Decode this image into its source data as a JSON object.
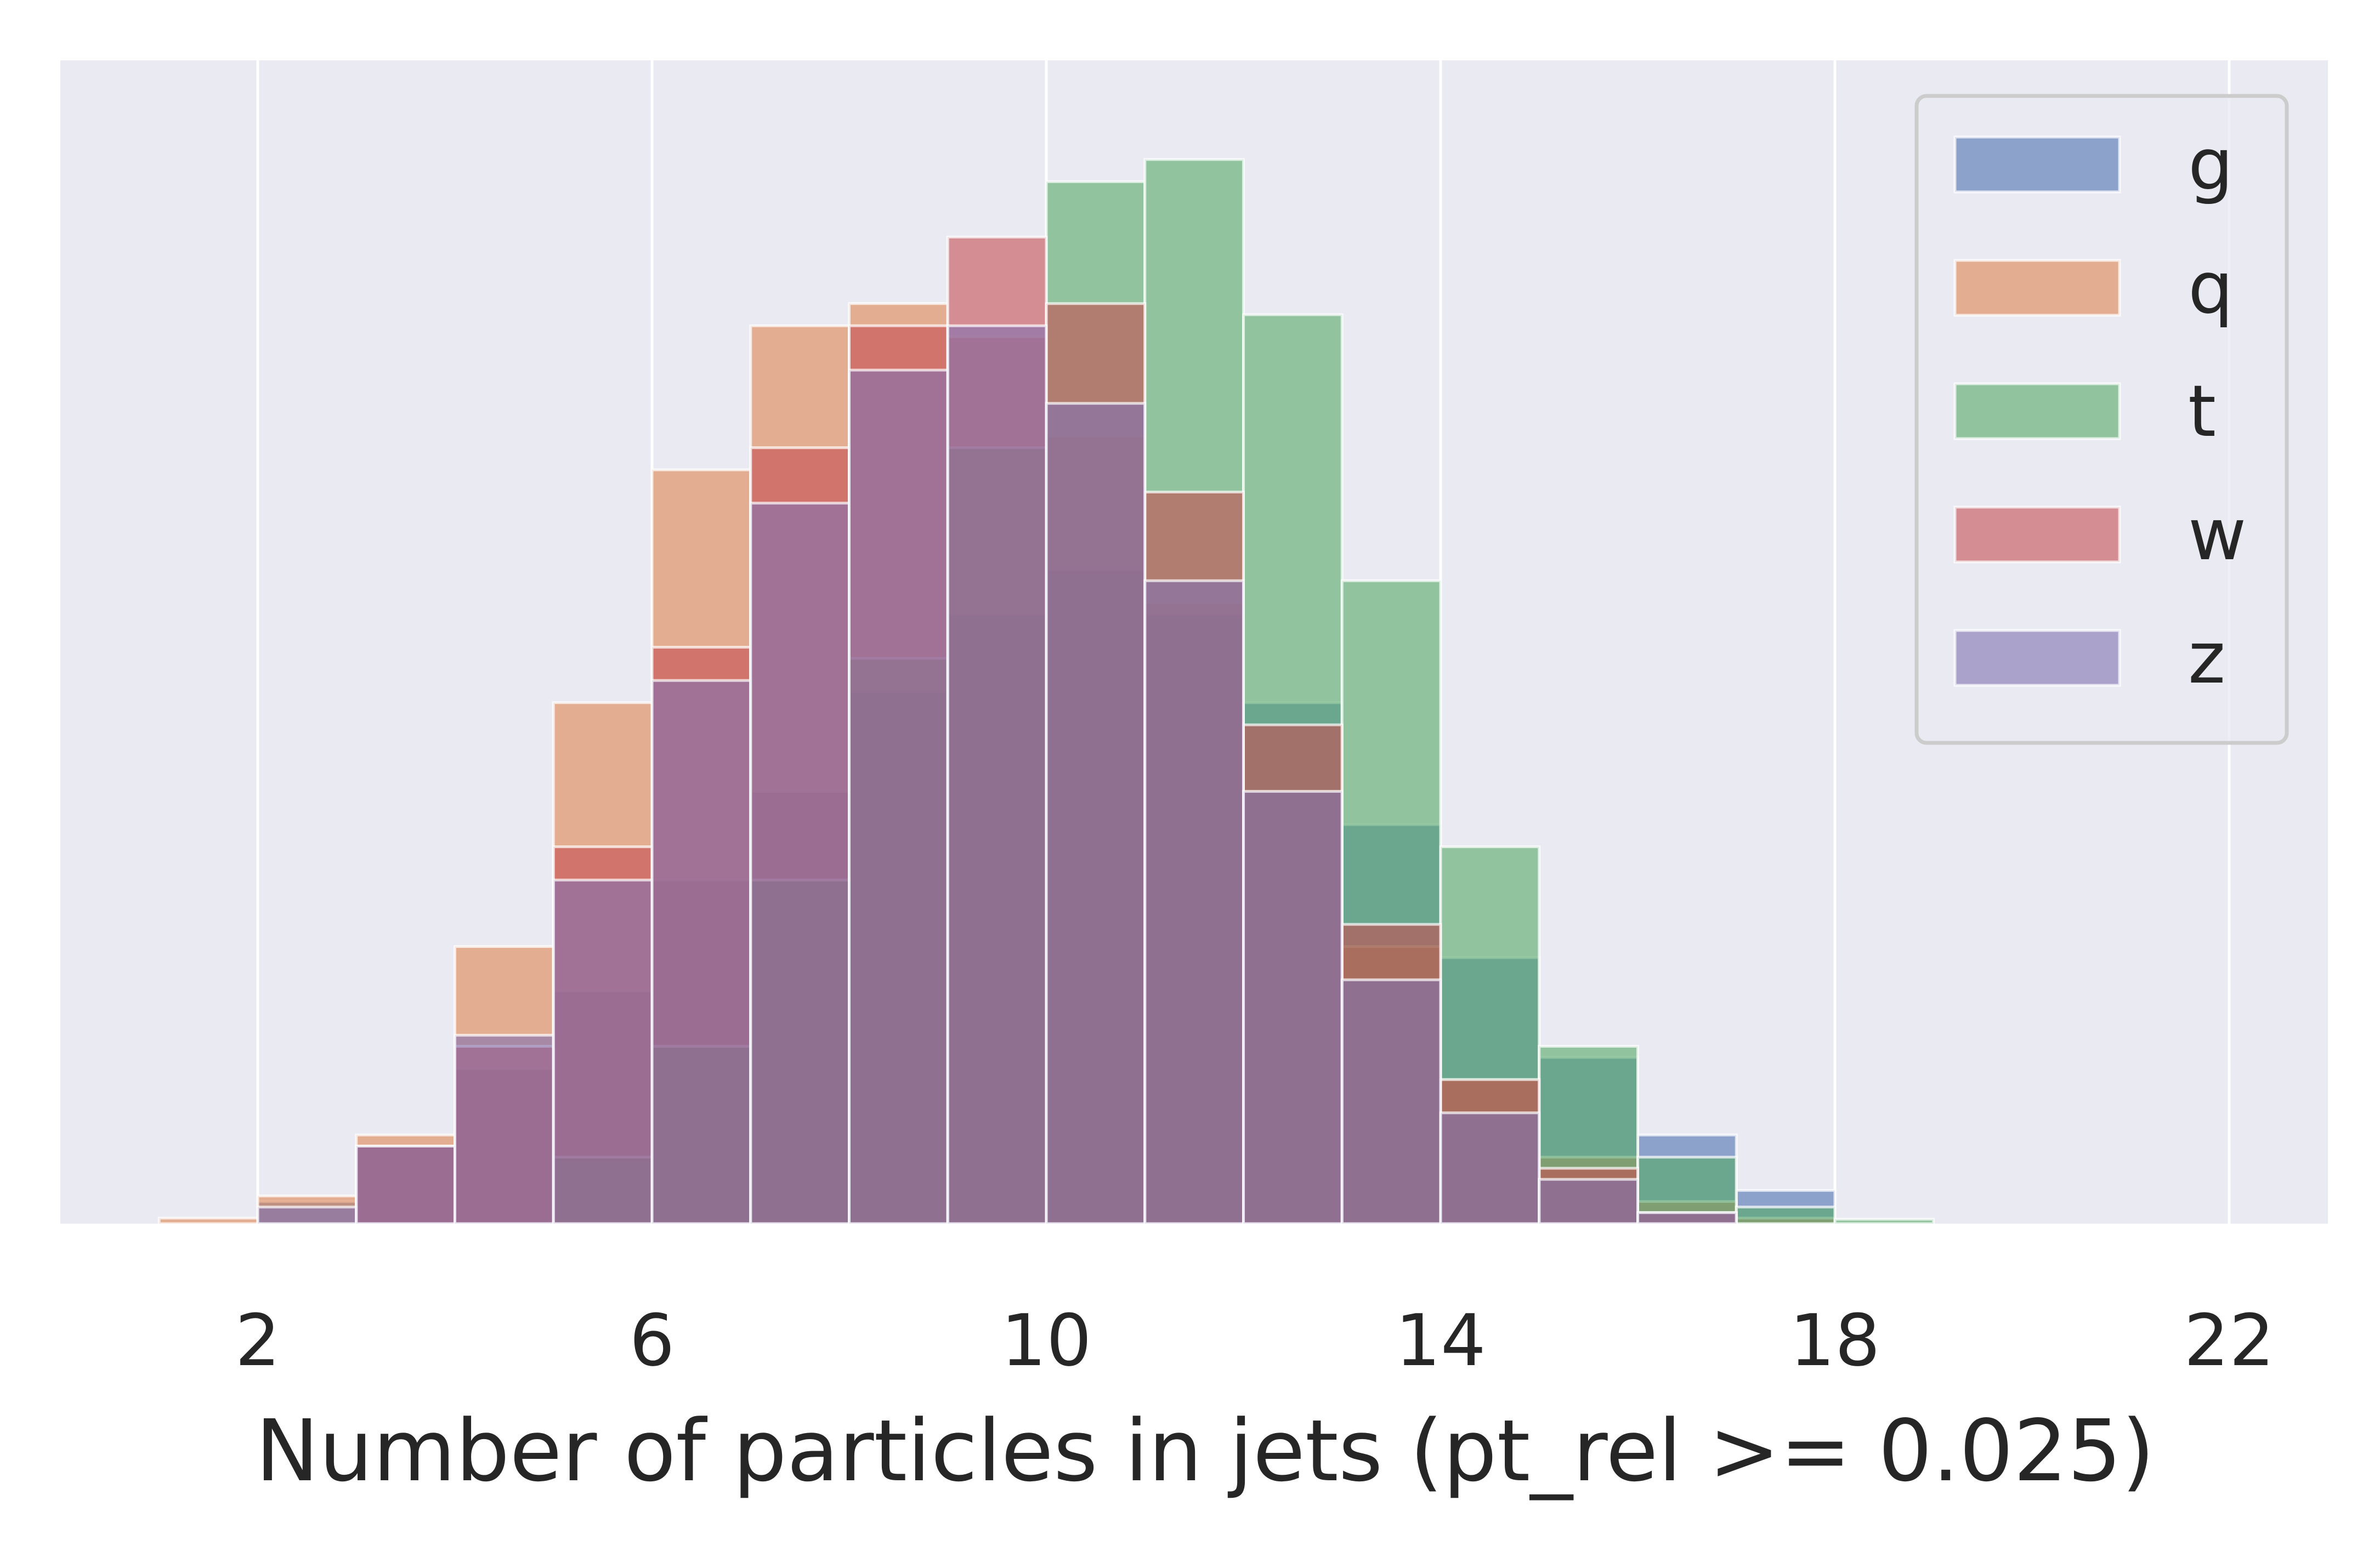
{
  "chart_data": {
    "type": "bar",
    "subtype": "overlaid-histogram",
    "title": "",
    "xlabel": "Number of particles in jets (pt_rel >= 0.025)",
    "ylabel": "",
    "xlim": [
      -2,
      23
    ],
    "ylim": [
      0,
      1.0
    ],
    "y_tick_labels_shown": false,
    "xticks": [
      2,
      6,
      10,
      14,
      18,
      22
    ],
    "grid": "vertical",
    "legend_placement": "top-right",
    "bar_opacity": 0.6,
    "series": [
      {
        "name": "g",
        "color": "#4c72b0",
        "bins": [
          {
            "x0": 2.0,
            "x1": 3.0,
            "value": 0.02
          },
          {
            "x0": 3.0,
            "x1": 4.0,
            "value": 0.07
          },
          {
            "x0": 4.0,
            "x1": 5.0,
            "value": 0.14
          },
          {
            "x0": 5.0,
            "x1": 6.0,
            "value": 0.21
          },
          {
            "x0": 6.0,
            "x1": 7.0,
            "value": 0.31
          },
          {
            "x0": 7.0,
            "x1": 8.0,
            "value": 0.39
          },
          {
            "x0": 8.0,
            "x1": 9.0,
            "value": 0.48
          },
          {
            "x0": 9.0,
            "x1": 10.0,
            "value": 0.55
          },
          {
            "x0": 10.0,
            "x1": 11.0,
            "value": 0.59
          },
          {
            "x0": 11.0,
            "x1": 12.0,
            "value": 0.55
          },
          {
            "x0": 12.0,
            "x1": 13.0,
            "value": 0.47
          },
          {
            "x0": 13.0,
            "x1": 14.0,
            "value": 0.36
          },
          {
            "x0": 14.0,
            "x1": 15.0,
            "value": 0.24
          },
          {
            "x0": 15.0,
            "x1": 16.0,
            "value": 0.15
          },
          {
            "x0": 16.0,
            "x1": 17.0,
            "value": 0.08
          },
          {
            "x0": 17.0,
            "x1": 18.0,
            "value": 0.03
          }
        ]
      },
      {
        "name": "q",
        "color": "#dd8452",
        "bins": [
          {
            "x0": 1.0,
            "x1": 2.0,
            "value": 0.005
          },
          {
            "x0": 2.0,
            "x1": 3.0,
            "value": 0.025
          },
          {
            "x0": 3.0,
            "x1": 4.0,
            "value": 0.08
          },
          {
            "x0": 4.0,
            "x1": 5.0,
            "value": 0.25
          },
          {
            "x0": 5.0,
            "x1": 6.0,
            "value": 0.47
          },
          {
            "x0": 6.0,
            "x1": 7.0,
            "value": 0.68
          },
          {
            "x0": 7.0,
            "x1": 8.0,
            "value": 0.81
          },
          {
            "x0": 8.0,
            "x1": 9.0,
            "value": 0.83
          },
          {
            "x0": 9.0,
            "x1": 10.0,
            "value": 0.8
          },
          {
            "x0": 10.0,
            "x1": 11.0,
            "value": 0.71
          },
          {
            "x0": 11.0,
            "x1": 12.0,
            "value": 0.56
          },
          {
            "x0": 12.0,
            "x1": 13.0,
            "value": 0.39
          },
          {
            "x0": 13.0,
            "x1": 14.0,
            "value": 0.25
          },
          {
            "x0": 14.0,
            "x1": 15.0,
            "value": 0.13
          },
          {
            "x0": 15.0,
            "x1": 16.0,
            "value": 0.06
          },
          {
            "x0": 16.0,
            "x1": 17.0,
            "value": 0.02
          },
          {
            "x0": 17.0,
            "x1": 18.0,
            "value": 0.005
          }
        ]
      },
      {
        "name": "t",
        "color": "#55a868",
        "bins": [
          {
            "x0": 5.0,
            "x1": 6.0,
            "value": 0.06
          },
          {
            "x0": 6.0,
            "x1": 7.0,
            "value": 0.16
          },
          {
            "x0": 7.0,
            "x1": 8.0,
            "value": 0.31
          },
          {
            "x0": 8.0,
            "x1": 9.0,
            "value": 0.51
          },
          {
            "x0": 9.0,
            "x1": 10.0,
            "value": 0.7
          },
          {
            "x0": 10.0,
            "x1": 11.0,
            "value": 0.94
          },
          {
            "x0": 11.0,
            "x1": 12.0,
            "value": 0.96
          },
          {
            "x0": 12.0,
            "x1": 13.0,
            "value": 0.82
          },
          {
            "x0": 13.0,
            "x1": 14.0,
            "value": 0.58
          },
          {
            "x0": 14.0,
            "x1": 15.0,
            "value": 0.34
          },
          {
            "x0": 15.0,
            "x1": 16.0,
            "value": 0.16
          },
          {
            "x0": 16.0,
            "x1": 17.0,
            "value": 0.06
          },
          {
            "x0": 17.0,
            "x1": 18.0,
            "value": 0.015
          },
          {
            "x0": 18.0,
            "x1": 19.0,
            "value": 0.004
          }
        ]
      },
      {
        "name": "w",
        "color": "#c44e52",
        "bins": [
          {
            "x0": 3.0,
            "x1": 4.0,
            "value": 0.07
          },
          {
            "x0": 4.0,
            "x1": 5.0,
            "value": 0.16
          },
          {
            "x0": 5.0,
            "x1": 6.0,
            "value": 0.34
          },
          {
            "x0": 6.0,
            "x1": 7.0,
            "value": 0.52
          },
          {
            "x0": 7.0,
            "x1": 8.0,
            "value": 0.7
          },
          {
            "x0": 8.0,
            "x1": 9.0,
            "value": 0.81
          },
          {
            "x0": 9.0,
            "x1": 10.0,
            "value": 0.89
          },
          {
            "x0": 10.0,
            "x1": 11.0,
            "value": 0.83
          },
          {
            "x0": 11.0,
            "x1": 12.0,
            "value": 0.66
          },
          {
            "x0": 12.0,
            "x1": 13.0,
            "value": 0.45
          },
          {
            "x0": 13.0,
            "x1": 14.0,
            "value": 0.27
          },
          {
            "x0": 14.0,
            "x1": 15.0,
            "value": 0.13
          },
          {
            "x0": 15.0,
            "x1": 16.0,
            "value": 0.05
          },
          {
            "x0": 16.0,
            "x1": 17.0,
            "value": 0.01
          }
        ]
      },
      {
        "name": "z",
        "color": "#8172b3",
        "bins": [
          {
            "x0": 2.0,
            "x1": 3.0,
            "value": 0.015
          },
          {
            "x0": 3.0,
            "x1": 4.0,
            "value": 0.07
          },
          {
            "x0": 4.0,
            "x1": 5.0,
            "value": 0.17
          },
          {
            "x0": 5.0,
            "x1": 6.0,
            "value": 0.31
          },
          {
            "x0": 6.0,
            "x1": 7.0,
            "value": 0.49
          },
          {
            "x0": 7.0,
            "x1": 8.0,
            "value": 0.65
          },
          {
            "x0": 8.0,
            "x1": 9.0,
            "value": 0.77
          },
          {
            "x0": 9.0,
            "x1": 10.0,
            "value": 0.81
          },
          {
            "x0": 10.0,
            "x1": 11.0,
            "value": 0.74
          },
          {
            "x0": 11.0,
            "x1": 12.0,
            "value": 0.58
          },
          {
            "x0": 12.0,
            "x1": 13.0,
            "value": 0.39
          },
          {
            "x0": 13.0,
            "x1": 14.0,
            "value": 0.22
          },
          {
            "x0": 14.0,
            "x1": 15.0,
            "value": 0.1
          },
          {
            "x0": 15.0,
            "x1": 16.0,
            "value": 0.04
          },
          {
            "x0": 16.0,
            "x1": 17.0,
            "value": 0.01
          }
        ]
      }
    ]
  }
}
